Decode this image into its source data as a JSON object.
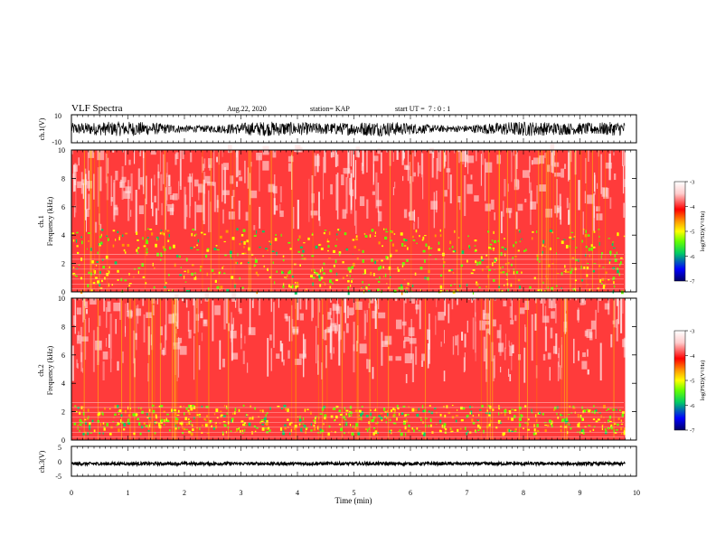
{
  "header": {
    "title": "VLF Spectra",
    "date": "Aug.22, 2020",
    "station": "station= KAP",
    "start": "start UT =  7 : 0 : 1"
  },
  "colors": {
    "spectrogram_base": "#ff1a1a",
    "colorbar_stops": [
      "#000066",
      "#0000ff",
      "#00cc66",
      "#66ff00",
      "#ffff00",
      "#ff9900",
      "#ff0000",
      "#ffcccc",
      "#ffffff"
    ],
    "waveform": "#000000"
  },
  "chart_data": [
    {
      "type": "line",
      "name": "ch1-waveform",
      "ylabel": "ch.1(V)",
      "ylim": [
        -10,
        10
      ],
      "yticks": [
        "10",
        "-10"
      ],
      "xlim": [
        0,
        9.8
      ],
      "description_values": {
        "amplitude_approx": 6
      }
    },
    {
      "type": "heatmap",
      "name": "ch1-spectrogram",
      "ylabel": "ch.1\nFrequency (kHz)",
      "ylim": [
        0,
        10
      ],
      "yticks": [
        "0",
        "2",
        "4",
        "6",
        "8",
        "10"
      ],
      "xlim": [
        0,
        10
      ],
      "colorbar": {
        "label": "log(PSD)(V²/Hz)",
        "range": [
          -7,
          -3
        ],
        "ticks": [
          "-3",
          "-4",
          "-5",
          "-6",
          "-7"
        ]
      },
      "bands_khz": {
        "strong_low": [
          0,
          1.5
        ],
        "moderate": [
          1.5,
          5
        ],
        "weak": [
          5,
          10
        ]
      }
    },
    {
      "type": "heatmap",
      "name": "ch2-spectrogram",
      "ylabel": "ch.2\nFrequency (kHz)",
      "ylim": [
        0,
        10
      ],
      "yticks": [
        "0",
        "2",
        "4",
        "6",
        "8",
        "10"
      ],
      "xlim": [
        0,
        10
      ],
      "colorbar": {
        "label": "log(PSD)(V²/Hz)",
        "range": [
          -7,
          -3
        ],
        "ticks": [
          "-3",
          "-4",
          "-5",
          "-6",
          "-7"
        ]
      },
      "bands_khz": {
        "strong_low": [
          0.5,
          2.5
        ],
        "moderate": [
          2.5,
          5
        ],
        "weak": [
          5,
          10
        ]
      }
    },
    {
      "type": "line",
      "name": "ch3-waveform",
      "ylabel": "ch.3(V)",
      "ylim": [
        -5,
        5
      ],
      "yticks": [
        "5",
        "0",
        "-5"
      ],
      "xlim": [
        0,
        9.8
      ],
      "description_values": {
        "center_v": -0.8,
        "amplitude_approx": 0.5
      }
    }
  ],
  "xaxis": {
    "label": "Time (min)",
    "ticks": [
      "0",
      "1",
      "2",
      "3",
      "4",
      "5",
      "6",
      "7",
      "8",
      "9",
      "10"
    ]
  }
}
